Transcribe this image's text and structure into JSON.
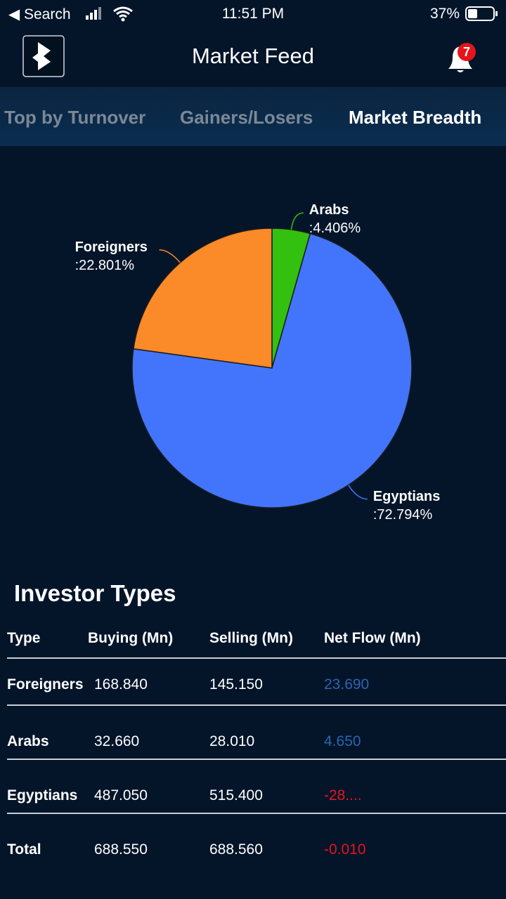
{
  "status_bar": {
    "back": "Search",
    "time": "11:51 PM",
    "battery": "37%"
  },
  "header": {
    "title": "Market Feed",
    "badge": "7"
  },
  "tabs": [
    "Top by Turnover",
    "Gainers/Losers",
    "Market Breadth"
  ],
  "chart_data": {
    "type": "pie",
    "categories": [
      "Arabs",
      "Egyptians",
      "Foreigners"
    ],
    "values": [
      4.406,
      72.794,
      22.801
    ],
    "value_labels": [
      ":4.406%",
      ":72.794%",
      ":22.801%"
    ],
    "colors": [
      "#33c00e",
      "#4275fb",
      "#fb8a28"
    ]
  },
  "table": {
    "title": "Investor Types",
    "columns": [
      "Type",
      "Buying (Mn)",
      "Selling (Mn)",
      "Net Flow (Mn)"
    ],
    "rows": [
      [
        "Foreigners",
        "168.840",
        "145.150",
        "23.690"
      ],
      [
        "Arabs",
        "32.660",
        "28.010",
        "4.650"
      ],
      [
        "Egyptians",
        "487.050",
        "515.400",
        "-28...."
      ],
      [
        "Total",
        "688.550",
        "688.560",
        "-0.010"
      ]
    ],
    "net_flow_colors": [
      "#2a64b0",
      "#2a64b0",
      "#e5151b",
      "#e5151b"
    ]
  }
}
